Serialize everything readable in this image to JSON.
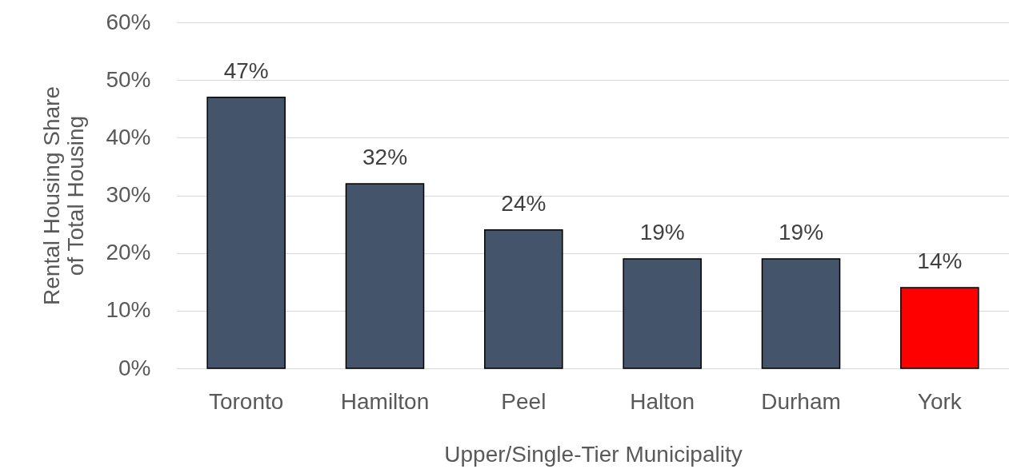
{
  "chart_data": {
    "type": "bar",
    "categories": [
      "Toronto",
      "Hamilton",
      "Peel",
      "Halton",
      "Durham",
      "York"
    ],
    "values": [
      47,
      32,
      24,
      19,
      19,
      14
    ],
    "value_labels": [
      "47%",
      "32%",
      "24%",
      "19%",
      "19%",
      "14%"
    ],
    "colors": [
      "#44546a",
      "#44546a",
      "#44546a",
      "#44546a",
      "#44546a",
      "#ff0000"
    ],
    "xlabel": "Upper/Single-Tier Municipality",
    "ylabel": "Rental Housing Share\nof Total Housing",
    "ylim": [
      0,
      60
    ],
    "yticks": [
      {
        "value": 0,
        "label": "0%"
      },
      {
        "value": 10,
        "label": "10%"
      },
      {
        "value": 20,
        "label": "20%"
      },
      {
        "value": 30,
        "label": "30%"
      },
      {
        "value": 40,
        "label": "40%"
      },
      {
        "value": 50,
        "label": "50%"
      },
      {
        "value": 60,
        "label": "60%"
      }
    ],
    "grid": "y"
  }
}
